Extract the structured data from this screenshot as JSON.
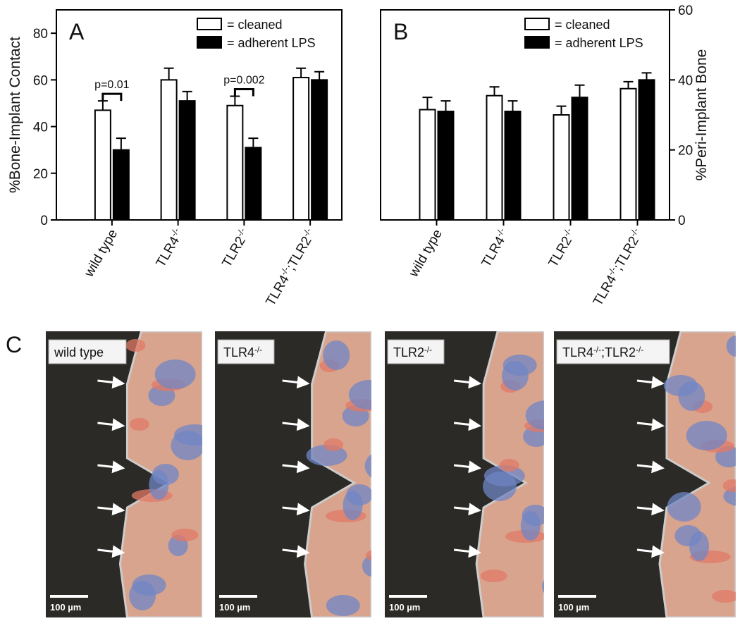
{
  "chart_data": [
    {
      "type": "bar",
      "title": "A",
      "y_label": "%Bone-Implant Contact",
      "y_axis_side": "left",
      "categories": [
        "wild type",
        "TLR4-/-",
        "TLR2-/-",
        "TLR4-/-;TLR2-/-"
      ],
      "series": [
        {
          "name": "= cleaned",
          "color": "#ffffff",
          "values": [
            47,
            60,
            49,
            61
          ],
          "errors": [
            4,
            5,
            4,
            4
          ]
        },
        {
          "name": "= adherent LPS",
          "color": "#000000",
          "values": [
            30,
            51,
            31,
            60
          ],
          "errors": [
            5,
            4,
            4,
            3.5
          ]
        }
      ],
      "ylim": [
        0,
        90
      ],
      "yticks": [
        0,
        20,
        40,
        60,
        80
      ],
      "annotations": [
        {
          "text": "p=0.01",
          "category": 0
        },
        {
          "text": "p=0.002",
          "category": 2
        }
      ]
    },
    {
      "type": "bar",
      "title": "B",
      "y_label": "%Peri-Implant Bone",
      "y_axis_side": "right",
      "categories": [
        "wild type",
        "TLR4-/-",
        "TLR2-/-",
        "TLR4-/-;TLR2-/-"
      ],
      "series": [
        {
          "name": "= cleaned",
          "color": "#ffffff",
          "values": [
            31.5,
            35.5,
            30,
            37.5
          ],
          "errors": [
            3.5,
            2.5,
            2.5,
            2
          ]
        },
        {
          "name": "= adherent LPS",
          "color": "#000000",
          "values": [
            31,
            31,
            35,
            40
          ],
          "errors": [
            3,
            3,
            3.5,
            2
          ]
        }
      ],
      "ylim": [
        0,
        60
      ],
      "yticks": [
        0,
        20,
        40,
        60
      ]
    }
  ],
  "panel_c": {
    "label": "C",
    "images": [
      "wild type",
      "TLR4-/-",
      "TLR2-/-",
      "TLR4-/-;TLR2-/-"
    ],
    "scale_bar": "100 µm"
  }
}
